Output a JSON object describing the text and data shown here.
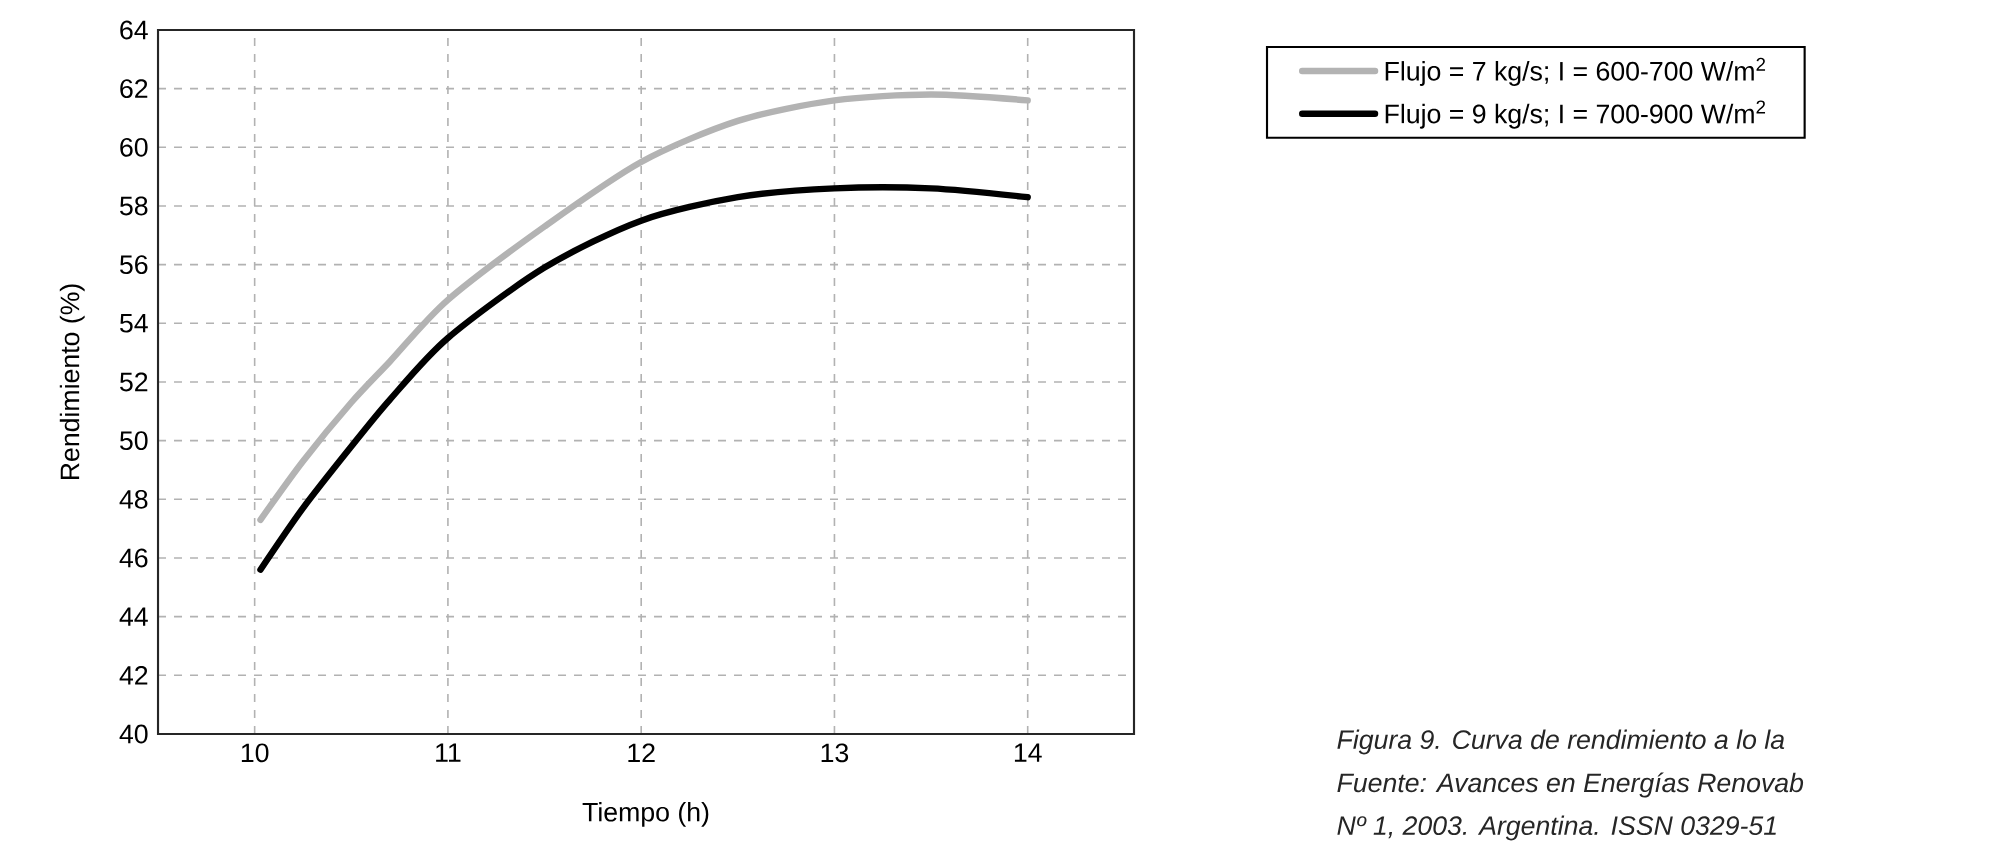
{
  "chart_data": {
    "type": "line",
    "xlabel": "Tiempo (h)",
    "ylabel": "Rendimiento (%)",
    "x": [
      10.03,
      10.25,
      10.5,
      10.7,
      11,
      11.5,
      12,
      12.5,
      13,
      13.5,
      14
    ],
    "series": [
      {
        "name": "Flujo = 7 kg/s; I = 600-700 W/m$^{2}$",
        "color": "#b3b3b3",
        "values": [
          47.3,
          49.3,
          51.3,
          52.7,
          54.8,
          57.3,
          59.5,
          60.9,
          61.6,
          61.8,
          61.6
        ]
      },
      {
        "name": "Flujo = 9 kg/s; I = 700-900 W/m$^{2}$",
        "color": "#000000",
        "values": [
          45.6,
          47.7,
          49.8,
          51.4,
          53.5,
          55.9,
          57.5,
          58.3,
          58.6,
          58.6,
          58.3
        ]
      }
    ],
    "xlim": [
      9.5,
      14.55
    ],
    "ylim": [
      40,
      64
    ],
    "xticks": [
      10,
      11,
      12,
      13,
      14
    ],
    "yticks": [
      40,
      42,
      44,
      46,
      48,
      50,
      52,
      54,
      56,
      58,
      60,
      62,
      64
    ],
    "grid": true,
    "legend": "top right",
    "marker": "none",
    "line_style": "solid",
    "annotations": [
      "Figura 9. Curva de rendimiento a lo la",
      "Fuente: Avances en Energías Renovab",
      "Nº 1, 2003. Argentina. ISSN 0329-51"
    ]
  }
}
